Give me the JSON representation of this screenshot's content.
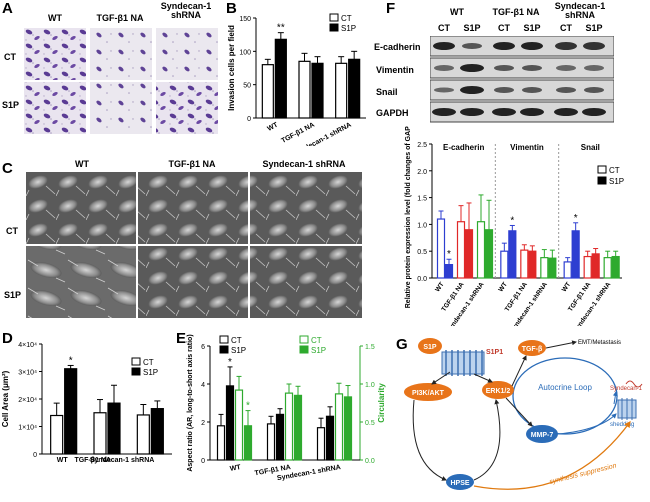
{
  "panels": {
    "A": {
      "label": "A",
      "conditions": [
        "WT",
        "TGF-β1 NA",
        "Syndecan-1 shRNA"
      ],
      "rows": [
        "CT",
        "S1P"
      ]
    },
    "B": {
      "label": "B"
    },
    "C": {
      "label": "C",
      "conditions": [
        "WT",
        "TGF-β1 NA",
        "Syndecan-1 shRNA"
      ],
      "rows": [
        "CT",
        "S1P"
      ]
    },
    "D": {
      "label": "D"
    },
    "E": {
      "label": "E"
    },
    "F": {
      "label": "F",
      "groups": [
        "WT",
        "TGF-β1 NA",
        "Syndecan-1 shRNA"
      ],
      "lanes": [
        "CT",
        "S1P",
        "CT",
        "S1P",
        "CT",
        "S1P"
      ],
      "blots": [
        "E-cadherin",
        "Vimentin",
        "Snail",
        "GAPDH"
      ]
    },
    "G": {
      "label": "G",
      "nodes": {
        "s1p": "S1P",
        "s1p1": "S1P1",
        "tgfb": "TGF-β",
        "emt": "EMT/Metastasis",
        "autocrine": "Autocrine Loop",
        "syndecan": "Syndecan-1",
        "pi3k": "PI3K/AKT",
        "erk": "ERK1/2",
        "mmp7": "MMP-7",
        "hpse": "HPSE",
        "shedding": "shedding",
        "synthesis": "synthesis suppression"
      }
    }
  },
  "chart_data": [
    {
      "id": "B",
      "type": "bar",
      "ylabel": "Invasion cells per field",
      "ylim": [
        0,
        150
      ],
      "yticks": [
        "0",
        "50",
        "100",
        "150"
      ],
      "categories": [
        "WT",
        "TGF-β1 NA",
        "Syndecan-1 shRNA"
      ],
      "series": [
        {
          "name": "CT",
          "values": [
            80,
            85,
            82
          ],
          "errors": [
            8,
            12,
            10
          ]
        },
        {
          "name": "S1P",
          "values": [
            118,
            82,
            88
          ],
          "errors": [
            10,
            10,
            12
          ]
        }
      ],
      "annotations": [
        "**"
      ],
      "legend": "top-right"
    },
    {
      "id": "D",
      "type": "bar",
      "ylabel": "Cell Area (μm²)",
      "ylim": [
        0,
        40000
      ],
      "yticks": [
        "0",
        "1×10⁴",
        "2×10⁴",
        "3×10⁴",
        "4×10⁴"
      ],
      "categories": [
        "WT",
        "TGF-β1 NA",
        "Syndecan-1 shRNA"
      ],
      "series": [
        {
          "name": "CT",
          "values": [
            14000,
            15000,
            14200
          ],
          "errors": [
            4500,
            4800,
            3800
          ]
        },
        {
          "name": "S1P",
          "values": [
            31000,
            18500,
            16500
          ],
          "errors": [
            1200,
            6500,
            2800
          ]
        }
      ],
      "annotations": [
        "*"
      ],
      "legend": "top-right"
    },
    {
      "id": "E",
      "type": "bar",
      "ylabel": "Aspect ratio (AR, long-to-short axis ratio)",
      "y2label": "Circularity",
      "ylim": [
        0,
        6
      ],
      "yticks": [
        "0",
        "2",
        "4",
        "6"
      ],
      "y2lim": [
        0,
        1.5
      ],
      "y2ticks": [
        "0.0",
        "0.5",
        "1.0",
        "1.5"
      ],
      "categories": [
        "WT",
        "TGF-β1 NA",
        "Syndecan-1 shRNA"
      ],
      "series": [
        {
          "name": "CT",
          "axis": "left",
          "values": [
            1.8,
            1.9,
            1.7
          ],
          "errors": [
            0.6,
            0.4,
            0.5
          ]
        },
        {
          "name": "S1P",
          "axis": "left",
          "values": [
            3.9,
            2.4,
            2.3
          ],
          "errors": [
            1.0,
            0.3,
            0.5
          ]
        },
        {
          "name": "CT",
          "axis": "right",
          "values": [
            0.92,
            0.88,
            0.87
          ],
          "errors": [
            0.18,
            0.12,
            0.14
          ]
        },
        {
          "name": "S1P",
          "axis": "right",
          "values": [
            0.45,
            0.85,
            0.83
          ],
          "errors": [
            0.2,
            0.12,
            0.15
          ]
        }
      ],
      "annotations": [
        "*",
        "*"
      ],
      "legend": "top"
    },
    {
      "id": "F",
      "type": "bar",
      "ylabel": "Relative protein expression level (fold changes of GAPDH)",
      "ylim": [
        0,
        2.5
      ],
      "yticks": [
        "0.0",
        "0.5",
        "1.0",
        "1.5",
        "2.0",
        "2.5"
      ],
      "groups": [
        "E-cadherin",
        "Vimentin",
        "Snail"
      ],
      "categories": [
        "WT",
        "TGF-β1 NA",
        "Syndecan-1 shRNA"
      ],
      "series": [
        {
          "name": "CT",
          "values": [
            [
              1.1,
              1.05,
              1.05
            ],
            [
              0.5,
              0.52,
              0.38
            ],
            [
              0.3,
              0.4,
              0.38
            ]
          ],
          "errors": [
            [
              0.15,
              0.3,
              0.5
            ],
            [
              0.15,
              0.1,
              0.15
            ],
            [
              0.08,
              0.1,
              0.12
            ]
          ]
        },
        {
          "name": "S1P",
          "values": [
            [
              0.25,
              0.9,
              0.9
            ],
            [
              0.88,
              0.5,
              0.37
            ],
            [
              0.88,
              0.45,
              0.4
            ]
          ],
          "errors": [
            [
              0.1,
              0.5,
              0.55
            ],
            [
              0.1,
              0.1,
              0.15
            ],
            [
              0.15,
              0.1,
              0.1
            ]
          ]
        }
      ],
      "annotations": [
        "*",
        "*",
        "*"
      ],
      "legend": "right"
    }
  ]
}
